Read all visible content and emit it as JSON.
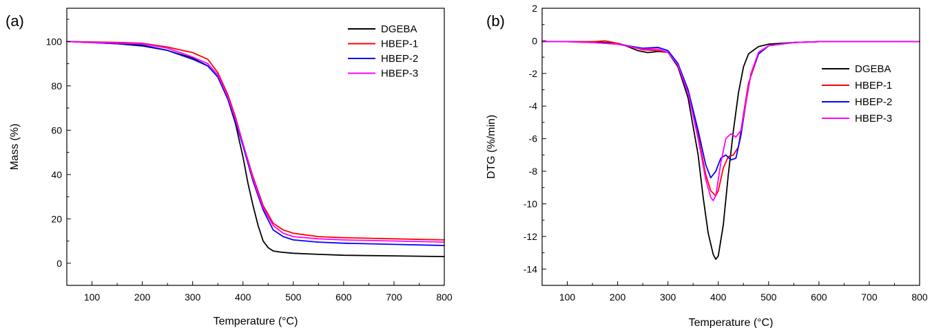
{
  "chart_data": [
    {
      "type": "line",
      "panel_label": "(a)",
      "xlabel": "Temperature (°C)",
      "ylabel": "Mass (%)",
      "xlim": [
        50,
        800
      ],
      "ylim": [
        -10,
        115
      ],
      "xticks": [
        100,
        200,
        300,
        400,
        500,
        600,
        700,
        800
      ],
      "yticks": [
        0,
        20,
        40,
        60,
        80,
        100
      ],
      "legend_position": "top-right",
      "series": [
        {
          "name": "DGEBA",
          "color": "#000000",
          "x": [
            50,
            100,
            150,
            200,
            250,
            300,
            330,
            350,
            370,
            385,
            400,
            410,
            420,
            430,
            440,
            450,
            460,
            475,
            500,
            550,
            600,
            700,
            800
          ],
          "y": [
            100,
            99.6,
            99,
            98,
            96,
            92.5,
            89,
            84,
            74,
            63,
            48,
            36,
            26,
            17,
            10,
            7,
            5.5,
            5,
            4.5,
            4,
            3.6,
            3.3,
            3
          ]
        },
        {
          "name": "HBEP-1",
          "color": "#ff0000",
          "x": [
            50,
            100,
            150,
            200,
            250,
            300,
            330,
            350,
            370,
            385,
            400,
            420,
            440,
            460,
            480,
            500,
            550,
            600,
            700,
            800
          ],
          "y": [
            100,
            99.8,
            99.6,
            99.2,
            97.5,
            95,
            92,
            86,
            76,
            66,
            54,
            39,
            26,
            18,
            15,
            13.5,
            12,
            11.5,
            11,
            10.5
          ]
        },
        {
          "name": "HBEP-2",
          "color": "#0000ff",
          "x": [
            50,
            100,
            150,
            200,
            250,
            300,
            330,
            350,
            370,
            385,
            400,
            420,
            440,
            460,
            480,
            500,
            550,
            600,
            700,
            800
          ],
          "y": [
            100,
            99.5,
            99,
            98.4,
            96,
            92,
            89,
            84,
            74,
            64,
            53,
            37,
            24,
            15,
            12,
            10.5,
            9.5,
            9,
            8.5,
            8
          ]
        },
        {
          "name": "HBEP-3",
          "color": "#ff00ff",
          "x": [
            50,
            100,
            150,
            200,
            250,
            300,
            330,
            350,
            370,
            385,
            400,
            420,
            440,
            460,
            480,
            500,
            550,
            600,
            700,
            800
          ],
          "y": [
            100,
            99.6,
            99.3,
            99,
            97,
            93,
            90,
            85,
            75,
            65,
            54,
            38,
            25,
            17,
            13.5,
            12,
            11,
            10.5,
            10,
            9.5
          ]
        }
      ]
    },
    {
      "type": "line",
      "panel_label": "(b)",
      "xlabel": "Temperature (°C)",
      "ylabel": "DTG (%/min)",
      "xlim": [
        50,
        800
      ],
      "ylim": [
        -15,
        2
      ],
      "xticks": [
        100,
        200,
        300,
        400,
        500,
        600,
        700,
        800
      ],
      "yticks": [
        -14,
        -12,
        -10,
        -8,
        -6,
        -4,
        -2,
        0,
        2
      ],
      "legend_position": "middle-right",
      "series": [
        {
          "name": "DGEBA",
          "color": "#000000",
          "x": [
            50,
            100,
            150,
            200,
            220,
            240,
            260,
            280,
            300,
            320,
            340,
            360,
            370,
            380,
            390,
            395,
            400,
            410,
            420,
            430,
            440,
            450,
            460,
            480,
            500,
            550,
            600,
            700,
            800
          ],
          "y": [
            -0.05,
            -0.05,
            -0.05,
            -0.15,
            -0.35,
            -0.6,
            -0.72,
            -0.65,
            -0.7,
            -1.6,
            -3.5,
            -7,
            -9.6,
            -11.8,
            -13.1,
            -13.4,
            -13.2,
            -11.3,
            -8.2,
            -5.5,
            -3.2,
            -1.6,
            -0.8,
            -0.35,
            -0.2,
            -0.1,
            -0.05,
            -0.05,
            -0.05
          ]
        },
        {
          "name": "HBEP-1",
          "color": "#ff0000",
          "x": [
            50,
            100,
            150,
            175,
            200,
            250,
            280,
            300,
            320,
            340,
            360,
            375,
            385,
            395,
            400,
            410,
            420,
            430,
            440,
            450,
            460,
            480,
            500,
            550,
            600,
            700,
            800
          ],
          "y": [
            -0.05,
            -0.05,
            -0.05,
            0.0,
            -0.15,
            -0.55,
            -0.6,
            -0.7,
            -1.5,
            -3.2,
            -5.8,
            -8.2,
            -9.2,
            -9.5,
            -9.2,
            -7.8,
            -7.1,
            -7.0,
            -6.5,
            -4.5,
            -2.6,
            -0.8,
            -0.3,
            -0.1,
            -0.05,
            -0.05,
            -0.05
          ]
        },
        {
          "name": "HBEP-2",
          "color": "#0000ff",
          "x": [
            50,
            100,
            150,
            200,
            250,
            280,
            300,
            320,
            340,
            360,
            375,
            385,
            395,
            405,
            415,
            425,
            435,
            445,
            455,
            465,
            480,
            500,
            550,
            600,
            700,
            800
          ],
          "y": [
            -0.05,
            -0.05,
            -0.1,
            -0.2,
            -0.45,
            -0.4,
            -0.6,
            -1.4,
            -3.0,
            -5.5,
            -7.6,
            -8.4,
            -8.0,
            -7.2,
            -7.0,
            -7.3,
            -7.2,
            -5.8,
            -3.8,
            -2.0,
            -0.8,
            -0.3,
            -0.1,
            -0.05,
            -0.05,
            -0.05
          ]
        },
        {
          "name": "HBEP-3",
          "color": "#ff00ff",
          "x": [
            50,
            100,
            150,
            200,
            250,
            280,
            300,
            320,
            340,
            360,
            375,
            385,
            390,
            395,
            405,
            415,
            425,
            435,
            445,
            455,
            465,
            480,
            500,
            550,
            600,
            700,
            800
          ],
          "y": [
            -0.05,
            -0.05,
            -0.1,
            -0.2,
            -0.5,
            -0.5,
            -0.7,
            -1.5,
            -3.2,
            -6.0,
            -8.5,
            -9.6,
            -9.8,
            -9.5,
            -7.5,
            -6.0,
            -5.7,
            -5.9,
            -5.5,
            -3.8,
            -2.0,
            -0.7,
            -0.3,
            -0.1,
            -0.05,
            -0.05,
            -0.05
          ]
        }
      ]
    }
  ]
}
